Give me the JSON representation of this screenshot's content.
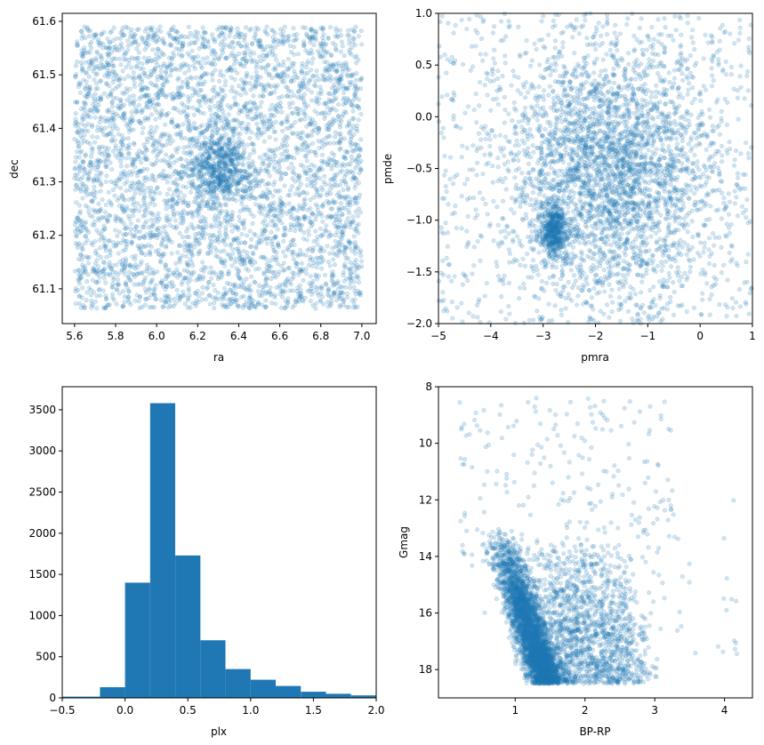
{
  "colors": {
    "accent": "#1f77b4",
    "axis": "#000000",
    "background": "#ffffff"
  },
  "chart_data": [
    {
      "id": "radec",
      "type": "scatter",
      "title": "",
      "xlabel": "ra",
      "ylabel": "dec",
      "xlim": [
        5.54,
        7.07
      ],
      "ylim": [
        61.035,
        61.615
      ],
      "xticks": [
        "5.6",
        "5.8",
        "6.0",
        "6.2",
        "6.4",
        "6.6",
        "6.8",
        "7.0"
      ],
      "yticks": [
        "61.1",
        "61.2",
        "61.3",
        "61.4",
        "61.5",
        "61.6"
      ],
      "grid": false,
      "marker_alpha": 0.2,
      "points_estimated": 6000,
      "distribution": "uniform over ra 5.6–7.0, dec 61.06–61.59 with a denser cluster near ra 6.3, dec 61.33",
      "cluster_center": [
        6.3,
        61.33
      ]
    },
    {
      "id": "propermotion",
      "type": "scatter",
      "title": "",
      "xlabel": "pmra",
      "ylabel": "pmde",
      "xlim": [
        -5,
        1
      ],
      "ylim": [
        -2,
        1
      ],
      "xticks": [
        "−5",
        "−4",
        "−3",
        "−2",
        "−1",
        "0",
        "1"
      ],
      "yticks": [
        "−2.0",
        "−1.5",
        "−1.0",
        "−0.5",
        "0.0",
        "0.5",
        "1.0"
      ],
      "grid": false,
      "marker_alpha": 0.2,
      "field_center": [
        -1.7,
        -0.55
      ],
      "cluster_center": [
        -2.8,
        -1.1
      ]
    },
    {
      "id": "parallax",
      "type": "bar",
      "title": "",
      "xlabel": "plx",
      "ylabel": "",
      "xlim": [
        -0.5,
        2.0
      ],
      "ylim": [
        0,
        3780
      ],
      "xticks": [
        "−0.5",
        "0.0",
        "0.5",
        "1.0",
        "1.5",
        "2.0"
      ],
      "yticks": [
        "0",
        "500",
        "1000",
        "1500",
        "2000",
        "2500",
        "3000",
        "3500"
      ],
      "bin_edges": [
        -0.5,
        -0.2,
        0.0,
        0.2,
        0.4,
        0.6,
        0.8,
        1.0,
        1.2,
        1.4,
        1.6,
        1.8,
        2.0
      ],
      "values": [
        15,
        130,
        1400,
        3580,
        1730,
        700,
        350,
        220,
        145,
        75,
        50,
        30
      ],
      "grid": false
    },
    {
      "id": "cmd",
      "type": "scatter",
      "title": "",
      "xlabel": "BP-RP",
      "ylabel": "Gmag",
      "xlim": [
        -0.1,
        4.4
      ],
      "ylim": [
        19.0,
        8.0
      ],
      "y_inverted": true,
      "xticks": [
        "1",
        "2",
        "3",
        "4"
      ],
      "yticks": [
        "8",
        "10",
        "12",
        "14",
        "16",
        "18"
      ],
      "grid": false,
      "marker_alpha": 0.2,
      "faint_limit": 18.5
    }
  ]
}
